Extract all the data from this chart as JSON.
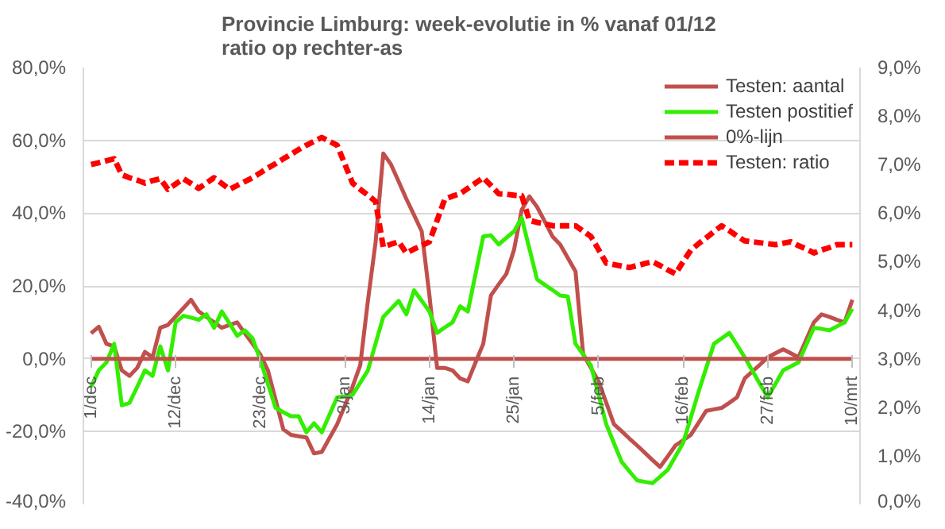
{
  "chart_data": {
    "type": "line",
    "title": "Provincie Limburg: week-evolutie in %  vanaf 01/12\nratio op rechter-as",
    "categories": [
      "1/dec",
      null,
      null,
      null,
      null,
      null,
      null,
      null,
      null,
      null,
      null,
      "12/dec",
      null,
      null,
      null,
      null,
      null,
      null,
      null,
      null,
      null,
      null,
      "23/dec",
      null,
      null,
      null,
      null,
      null,
      null,
      null,
      null,
      null,
      null,
      "3/jan",
      null,
      null,
      null,
      null,
      null,
      null,
      null,
      null,
      null,
      null,
      "14/jan",
      null,
      null,
      null,
      null,
      null,
      null,
      null,
      null,
      null,
      null,
      "25/jan",
      null,
      null,
      null,
      null,
      null,
      null,
      null,
      null,
      null,
      null,
      "5/feb",
      null,
      null,
      null,
      null,
      null,
      null,
      null,
      null,
      null,
      null,
      "16/feb",
      null,
      null,
      null,
      null,
      null,
      null,
      null,
      null,
      null,
      null,
      "27/feb",
      null,
      null,
      null,
      null,
      null,
      null,
      null,
      null,
      null,
      null,
      "10/mrt"
    ],
    "ylim": [
      -40,
      80
    ],
    "yticks": [
      {
        "value": -40,
        "label": "-40,0%"
      },
      {
        "value": -20,
        "label": "-20,0%"
      },
      {
        "value": 0,
        "label": "0,0%"
      },
      {
        "value": 20,
        "label": "20,0%"
      },
      {
        "value": 40,
        "label": "40,0%"
      },
      {
        "value": 60,
        "label": "60,0%"
      },
      {
        "value": 80,
        "label": "80,0%"
      }
    ],
    "y2lim": [
      0,
      9
    ],
    "y2ticks": [
      {
        "value": 0,
        "label": "0,0%"
      },
      {
        "value": 1,
        "label": "1,0%"
      },
      {
        "value": 2,
        "label": "2,0%"
      },
      {
        "value": 3,
        "label": "3,0%"
      },
      {
        "value": 4,
        "label": "4,0%"
      },
      {
        "value": 5,
        "label": "5,0%"
      },
      {
        "value": 6,
        "label": "6,0%"
      },
      {
        "value": 7,
        "label": "7,0%"
      },
      {
        "value": 8,
        "label": "8,0%"
      },
      {
        "value": 9,
        "label": "9,0%"
      }
    ],
    "grid": "y",
    "legend": "top right",
    "marker": "none",
    "series": [
      {
        "name": "Testen: aantal",
        "color": "#c0504d",
        "line_style": "solid",
        "values": [
          7,
          8.8,
          4.1,
          3.4,
          -3.2,
          -4.7,
          -2.5,
          1.9,
          0.4,
          8.5,
          9.3,
          11.6,
          13.9,
          16.2,
          13,
          11.5,
          10,
          8.5,
          9.3,
          10,
          7,
          4.1,
          1.2,
          -3.2,
          -11.3,
          -19.4,
          -20.9,
          -21.3,
          -21.6,
          -26,
          -25.6,
          -21.8,
          -18,
          -12.9,
          -7.7,
          -1.8,
          15.9,
          32,
          56.4,
          53.4,
          48.7,
          43.9,
          39.5,
          35,
          17.4,
          -2.5,
          -2.5,
          -3.2,
          -5.4,
          -6.2,
          -1,
          4.1,
          17.4,
          20.4,
          23.3,
          29.9,
          40.9,
          44.6,
          41.7,
          37.7,
          33.6,
          31.4,
          27.7,
          24,
          1.2,
          -2.5,
          -6.2,
          -12.1,
          -18,
          -19.9,
          -21.9,
          -23.8,
          -25.8,
          -27.8,
          -29.7,
          -26.8,
          -23.8,
          -22.4,
          -20.9,
          -17.6,
          -14.3,
          -13.9,
          -13.5,
          -12.1,
          -10.6,
          -5.4,
          -3.5,
          -1.6,
          0.4,
          1.5,
          2.6,
          1.5,
          0.4,
          5.2,
          10,
          12.2,
          11.5,
          10.7,
          10,
          16.2
        ]
      },
      {
        "name": "Testen postitief",
        "color": "#33ee00",
        "line_style": "solid",
        "values": [
          -7.7,
          -3.2,
          -1,
          4.1,
          -12.8,
          -12.1,
          -7.7,
          -3.2,
          -4.7,
          3.4,
          -3.2,
          10,
          11.8,
          11.3,
          10.7,
          12.2,
          8.5,
          13,
          9.7,
          6.3,
          7.8,
          5.6,
          -0.3,
          -6.9,
          -13.5,
          -14.7,
          -15.8,
          -15.8,
          -20.2,
          -17.7,
          -20.2,
          -15.4,
          -10.6,
          -10.3,
          -9.9,
          -6.6,
          -3.2,
          4.2,
          11.5,
          13.7,
          15.9,
          12.2,
          18.8,
          15.9,
          13,
          7.1,
          8.6,
          10,
          14.4,
          13,
          23.3,
          33.6,
          33.9,
          31.4,
          33.2,
          35,
          38.7,
          30.3,
          21.8,
          20.3,
          18.9,
          17.4,
          17.1,
          4.1,
          1.2,
          -1.8,
          -9.9,
          -18,
          -23.2,
          -28.3,
          -30.9,
          -33.4,
          -33.8,
          -34.2,
          -32.4,
          -30.5,
          -26.8,
          -23.1,
          -16.1,
          -9.1,
          -2.5,
          4.1,
          5.6,
          7.1,
          3.8,
          0.4,
          -3.3,
          -7,
          -10.6,
          -6.9,
          -3.2,
          -2.1,
          -1,
          3.8,
          8.5,
          8.2,
          7.8,
          8.9,
          10,
          13.7
        ]
      },
      {
        "name": "0%-lijn",
        "color": "#c0504d",
        "line_style": "solid",
        "values": [
          0,
          0,
          0,
          0,
          0,
          0,
          0,
          0,
          0,
          0,
          0,
          0,
          0,
          0,
          0,
          0,
          0,
          0,
          0,
          0,
          0,
          0,
          0,
          0,
          0,
          0,
          0,
          0,
          0,
          0,
          0,
          0,
          0,
          0,
          0,
          0,
          0,
          0,
          0,
          0,
          0,
          0,
          0,
          0,
          0,
          0,
          0,
          0,
          0,
          0,
          0,
          0,
          0,
          0,
          0,
          0,
          0,
          0,
          0,
          0,
          0,
          0,
          0,
          0,
          0,
          0,
          0,
          0,
          0,
          0,
          0,
          0,
          0,
          0,
          0,
          0,
          0,
          0,
          0,
          0,
          0,
          0,
          0,
          0,
          0,
          0,
          0,
          0,
          0,
          0,
          0,
          0,
          0,
          0,
          0,
          0,
          0,
          0,
          0,
          0
        ]
      },
      {
        "name": "Testen: ratio",
        "color": "#ff0000",
        "line_style": "dashed",
        "axis": "y2",
        "values": [
          7.0,
          7.04,
          7.08,
          7.12,
          6.79,
          6.73,
          6.68,
          6.62,
          6.67,
          6.71,
          6.49,
          6.6,
          6.71,
          6.61,
          6.51,
          6.62,
          6.73,
          6.61,
          6.49,
          6.57,
          6.65,
          6.73,
          6.83,
          6.93,
          7.02,
          7.12,
          7.21,
          7.31,
          7.4,
          7.48,
          7.56,
          7.48,
          7.4,
          7.01,
          6.62,
          6.49,
          6.37,
          6.24,
          5.3,
          5.36,
          5.41,
          5.18,
          5.26,
          5.33,
          5.41,
          5.85,
          6.29,
          6.35,
          6.4,
          6.51,
          6.62,
          6.73,
          6.57,
          6.4,
          6.39,
          6.37,
          6.36,
          5.85,
          5.81,
          5.78,
          5.74,
          5.74,
          5.74,
          5.74,
          5.63,
          5.52,
          5.25,
          4.97,
          4.94,
          4.91,
          4.88,
          4.92,
          4.96,
          5.0,
          4.92,
          4.83,
          4.75,
          5.0,
          5.24,
          5.37,
          5.49,
          5.62,
          5.74,
          5.64,
          5.53,
          5.43,
          5.41,
          5.39,
          5.37,
          5.35,
          5.38,
          5.41,
          5.33,
          5.26,
          5.18,
          5.24,
          5.29,
          5.35,
          5.35,
          5.35
        ]
      }
    ]
  }
}
